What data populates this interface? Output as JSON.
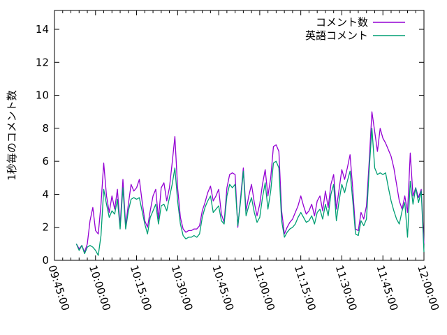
{
  "chart_data": {
    "type": "line",
    "title": "",
    "xlabel": "",
    "ylabel": "1秒毎のコメント数",
    "x_start": "09:45:00",
    "x_end": "12:00:00",
    "x_ticks": [
      "09:45:00",
      "10:00:00",
      "10:15:00",
      "10:30:00",
      "10:45:00",
      "11:00:00",
      "11:15:00",
      "11:30:00",
      "11:45:00",
      "12:00:00"
    ],
    "x_minor_tick_minutes": 3,
    "y_ticks": [
      0,
      2,
      4,
      6,
      8,
      10,
      12,
      14
    ],
    "ylim": [
      0,
      15.1
    ],
    "grid": false,
    "legend_position": "top-right-inside",
    "axis_color": "#000000",
    "background_color": "#ffffff",
    "times": [
      "09:53",
      "09:54",
      "09:55",
      "09:56",
      "09:57",
      "09:58",
      "09:59",
      "10:00",
      "10:01",
      "10:02",
      "10:03",
      "10:04",
      "10:05",
      "10:06",
      "10:07",
      "10:08",
      "10:09",
      "10:10",
      "10:11",
      "10:12",
      "10:13",
      "10:14",
      "10:15",
      "10:16",
      "10:17",
      "10:18",
      "10:19",
      "10:20",
      "10:21",
      "10:22",
      "10:23",
      "10:24",
      "10:25",
      "10:26",
      "10:27",
      "10:28",
      "10:29",
      "10:30",
      "10:31",
      "10:32",
      "10:33",
      "10:34",
      "10:35",
      "10:36",
      "10:37",
      "10:38",
      "10:39",
      "10:40",
      "10:41",
      "10:42",
      "10:43",
      "10:44",
      "10:45",
      "10:46",
      "10:47",
      "10:48",
      "10:49",
      "10:50",
      "10:51",
      "10:52",
      "10:53",
      "10:54",
      "10:55",
      "10:56",
      "10:57",
      "10:58",
      "10:59",
      "11:00",
      "11:01",
      "11:02",
      "11:03",
      "11:04",
      "11:05",
      "11:06",
      "11:07",
      "11:08",
      "11:09",
      "11:10",
      "11:11",
      "11:12",
      "11:13",
      "11:14",
      "11:15",
      "11:16",
      "11:17",
      "11:18",
      "11:19",
      "11:20",
      "11:21",
      "11:22",
      "11:23",
      "11:24",
      "11:25",
      "11:26",
      "11:27",
      "11:28",
      "11:29",
      "11:30",
      "11:31",
      "11:32",
      "11:33",
      "11:34",
      "11:35",
      "11:36",
      "11:37",
      "11:38",
      "11:39",
      "11:40",
      "11:41",
      "11:42",
      "11:43",
      "11:44",
      "11:45",
      "11:46",
      "11:47",
      "11:48",
      "11:49",
      "11:50",
      "11:51",
      "11:52",
      "11:53",
      "11:54",
      "11:55",
      "11:56",
      "11:57",
      "11:58",
      "11:59",
      "12:00"
    ],
    "series": [
      {
        "name": "コメント数",
        "color": "#9400d3",
        "values": [
          1.0,
          0.7,
          0.9,
          0.5,
          1.0,
          2.4,
          3.2,
          1.8,
          1.6,
          3.4,
          5.9,
          3.9,
          2.9,
          3.9,
          3.1,
          4.3,
          2.1,
          4.9,
          2.1,
          3.4,
          4.6,
          4.2,
          4.4,
          4.9,
          3.6,
          2.4,
          2.0,
          3.0,
          3.9,
          4.3,
          2.5,
          4.4,
          4.7,
          3.6,
          4.4,
          5.9,
          7.5,
          4.4,
          2.6,
          1.9,
          1.7,
          1.8,
          1.8,
          1.9,
          1.9,
          2.1,
          3.0,
          3.5,
          4.1,
          4.5,
          3.6,
          3.9,
          4.3,
          2.8,
          2.3,
          4.4,
          5.2,
          5.3,
          5.2,
          2.0,
          3.8,
          5.6,
          3.0,
          3.9,
          4.6,
          3.5,
          2.7,
          3.4,
          4.6,
          5.5,
          3.9,
          5.0,
          6.9,
          7.0,
          6.6,
          3.0,
          1.6,
          2.0,
          2.3,
          2.5,
          2.9,
          3.3,
          3.9,
          3.3,
          2.8,
          3.0,
          3.4,
          2.7,
          3.6,
          3.9,
          3.0,
          4.2,
          3.2,
          4.6,
          5.2,
          3.1,
          4.3,
          5.5,
          4.9,
          5.6,
          6.4,
          4.3,
          1.9,
          1.8,
          2.9,
          2.5,
          3.3,
          6.0,
          9.0,
          7.8,
          6.6,
          8.0,
          7.4,
          7.1,
          6.7,
          6.3,
          5.6,
          4.6,
          3.6,
          3.1,
          3.9,
          2.9,
          6.5,
          3.9,
          4.4,
          3.8,
          4.3,
          1.0
        ]
      },
      {
        "name": "英語コメント",
        "color": "#009e73",
        "values": [
          1.0,
          0.6,
          0.9,
          0.4,
          0.8,
          0.9,
          0.8,
          0.6,
          0.3,
          1.5,
          4.3,
          3.4,
          2.6,
          3.0,
          2.8,
          3.7,
          1.9,
          4.4,
          1.9,
          3.0,
          3.7,
          3.8,
          3.7,
          3.8,
          3.0,
          2.2,
          1.6,
          2.6,
          3.0,
          3.4,
          2.2,
          3.3,
          3.4,
          3.0,
          3.8,
          4.6,
          5.6,
          3.6,
          2.2,
          1.5,
          1.3,
          1.4,
          1.4,
          1.5,
          1.4,
          1.6,
          2.6,
          3.2,
          3.6,
          3.9,
          2.9,
          3.1,
          3.3,
          2.4,
          2.2,
          3.9,
          4.6,
          4.4,
          4.6,
          2.1,
          3.6,
          5.4,
          2.7,
          3.3,
          3.8,
          2.9,
          2.3,
          2.6,
          3.8,
          4.7,
          3.1,
          4.2,
          5.9,
          6.0,
          5.6,
          2.4,
          1.4,
          1.7,
          1.9,
          2.0,
          2.2,
          2.6,
          2.9,
          2.6,
          2.3,
          2.4,
          2.7,
          2.2,
          2.9,
          3.1,
          2.5,
          3.4,
          2.7,
          4.0,
          4.6,
          2.4,
          3.6,
          4.6,
          4.1,
          4.8,
          5.4,
          3.6,
          1.6,
          1.5,
          2.4,
          2.1,
          2.5,
          5.5,
          8.0,
          5.6,
          5.2,
          5.3,
          5.2,
          5.3,
          4.4,
          3.6,
          3.0,
          2.5,
          2.2,
          3.0,
          3.5,
          1.4,
          4.8,
          3.4,
          4.4,
          3.5,
          4.2,
          0.5
        ]
      }
    ]
  }
}
